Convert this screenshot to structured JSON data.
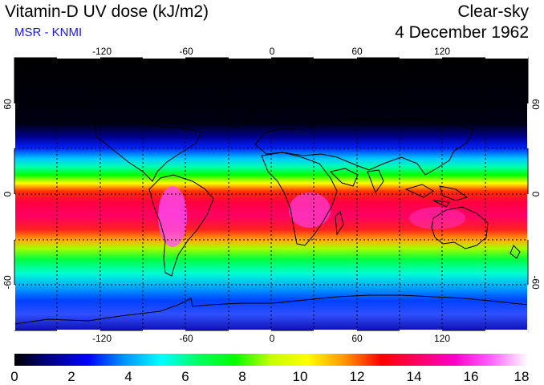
{
  "header": {
    "title": "Vitamin-D UV dose (kJ/m2)",
    "subtitle": "MSR - KNMI",
    "condition": "Clear-sky",
    "date": "4 December 1962"
  },
  "map": {
    "lon_ticks": [
      -120,
      -60,
      0,
      60,
      120
    ],
    "lat_ticks": [
      60,
      0,
      -60
    ],
    "lon_range": [
      -180,
      180
    ],
    "lat_range": [
      -90,
      90
    ],
    "grid": "dotted every 30 degrees",
    "coastlines": "black"
  },
  "colorbar": {
    "min": 0,
    "max": 18,
    "labels": [
      "0",
      "2",
      "4",
      "6",
      "8",
      "10",
      "12",
      "14",
      "16",
      "18"
    ],
    "colors": [
      "#000000",
      "#00008c",
      "#0000ff",
      "#0096ff",
      "#00ffff",
      "#00ff64",
      "#00ff00",
      "#c8ff00",
      "#ffff00",
      "#ff9600",
      "#ff0000",
      "#ff0064",
      "#ff00c8",
      "#ff64ff",
      "#ffffff"
    ]
  }
}
